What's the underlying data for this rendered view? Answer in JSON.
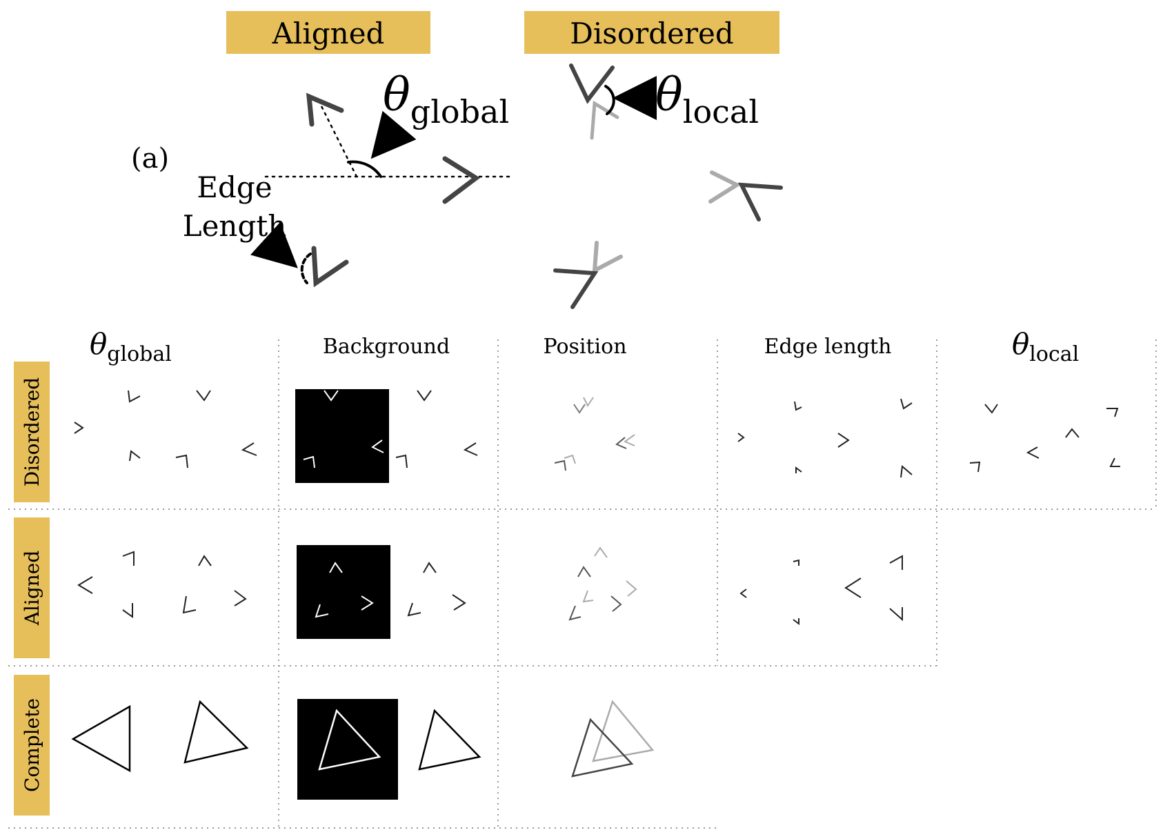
{
  "banners": {
    "aligned": "Aligned",
    "disordered": "Disordered"
  },
  "panel_label": "(a)",
  "annotations": {
    "theta_symbol": "θ",
    "global_sub": "global",
    "local_sub": "local",
    "edge_line1": "Edge",
    "edge_line2": "Length"
  },
  "columns": [
    "Background",
    "Position",
    "Edge length"
  ],
  "rows": [
    "Disordered",
    "Aligned",
    "Complete"
  ],
  "colors": {
    "banner": "#E6BE5A",
    "grid": "#999999",
    "stroke": "#000000"
  }
}
